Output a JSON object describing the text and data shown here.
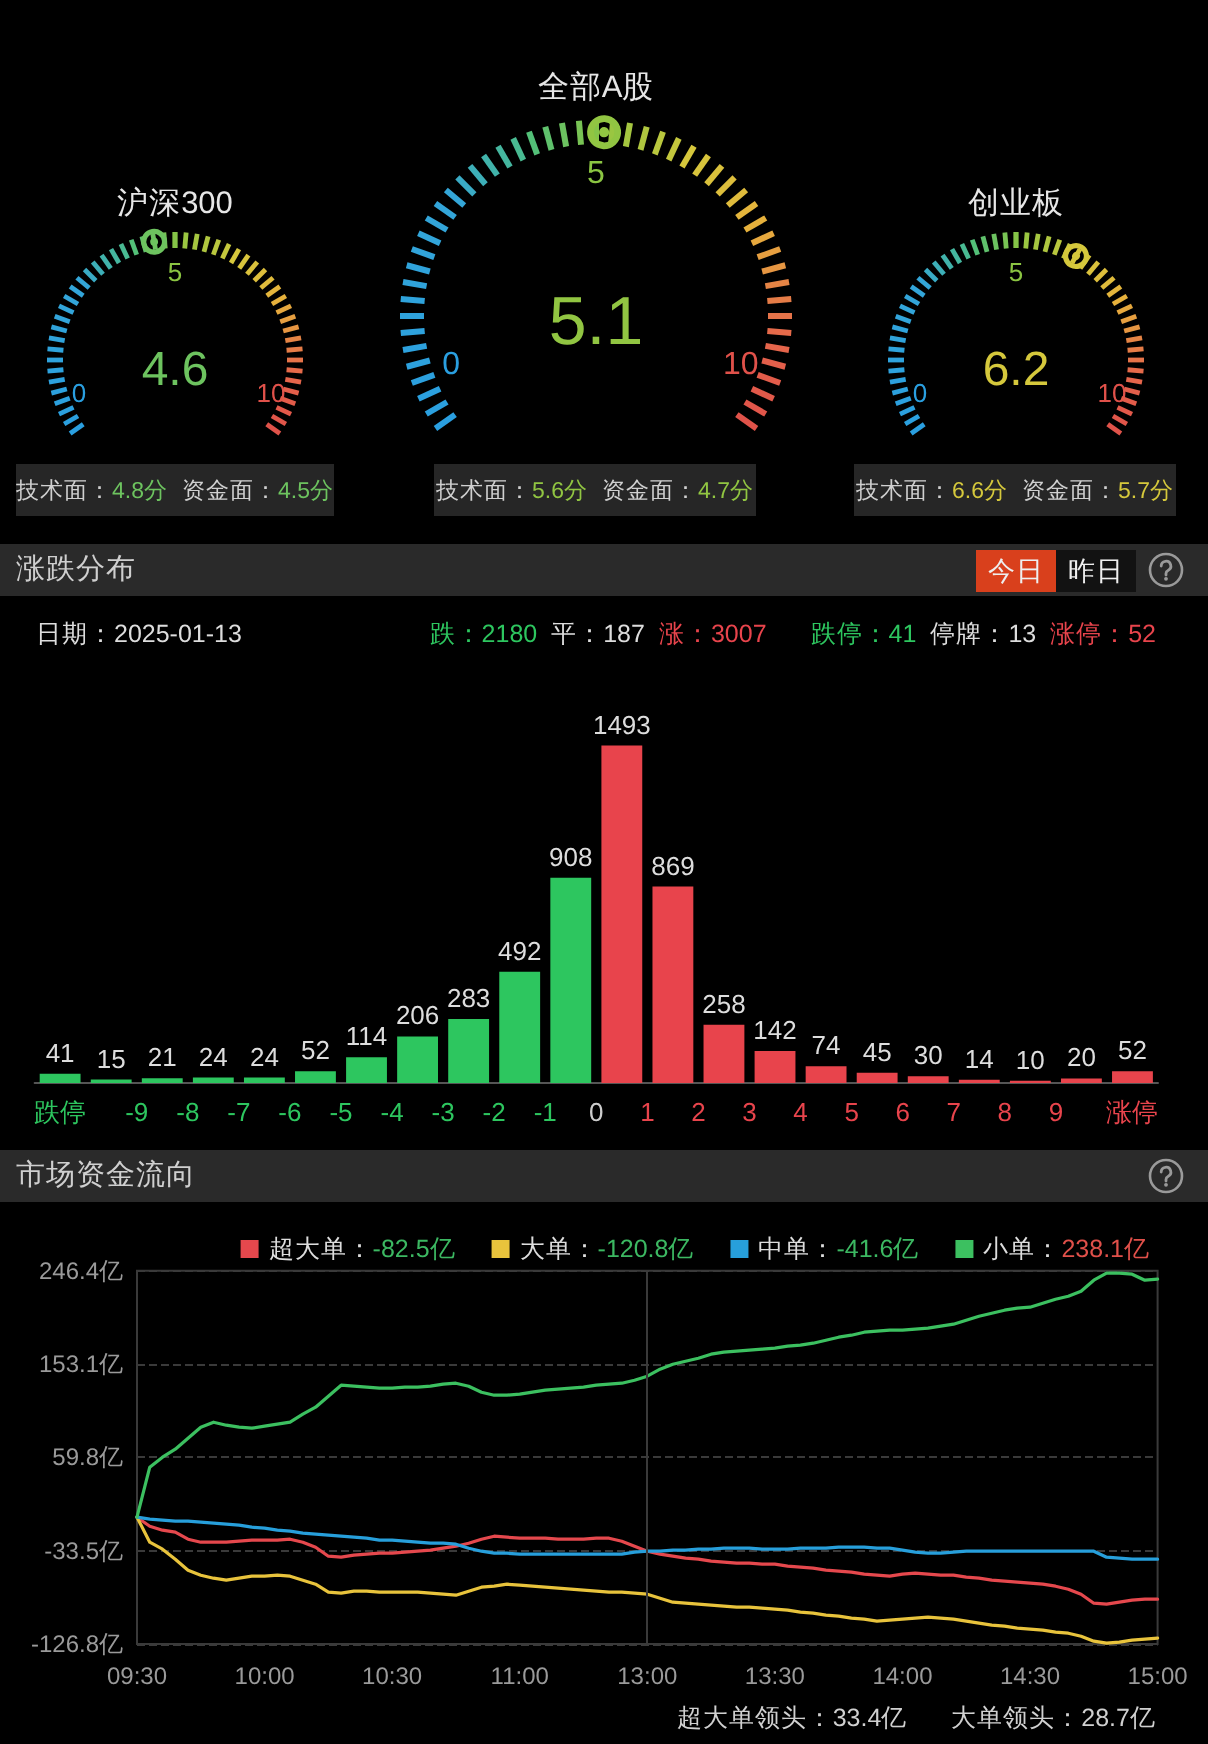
{
  "chart_data": [
    {
      "type": "other",
      "title": "沪深300",
      "values": [
        4.6
      ],
      "data_labels": true,
      "annotations": [
        "0",
        "5",
        "10",
        "技术面：4.8分",
        "资金面：4.5分"
      ]
    },
    {
      "type": "other",
      "title": "全部A股",
      "values": [
        5.1
      ],
      "data_labels": true,
      "annotations": [
        "0",
        "5",
        "10",
        "技术面：5.6分",
        "资金面：4.7分"
      ]
    },
    {
      "type": "other",
      "title": "创业板",
      "values": [
        6.2
      ],
      "data_labels": true,
      "annotations": [
        "0",
        "5",
        "10",
        "技术面：6.6分",
        "资金面：5.7分"
      ]
    },
    {
      "type": "bar",
      "title": "涨跌分布",
      "x": [
        -10.5,
        -9.5,
        -8.5,
        -7.5,
        -6.5,
        -5.5,
        -4.5,
        -3.5,
        -2.5,
        -1.5,
        -0.5,
        0.5,
        1.5,
        2.5,
        3.5,
        4.5,
        5.5,
        6.5,
        7.5,
        8.5,
        9.5,
        10.5
      ],
      "values": [
        41,
        15,
        21,
        24,
        24,
        52,
        114,
        206,
        283,
        492,
        908,
        1493,
        869,
        258,
        142,
        74,
        45,
        30,
        14,
        10,
        20,
        52
      ],
      "colors": [
        "#2dc65f",
        "#2dc65f",
        "#2dc65f",
        "#2dc65f",
        "#2dc65f",
        "#2dc65f",
        "#2dc65f",
        "#2dc65f",
        "#2dc65f",
        "#2dc65f",
        "#2dc65f",
        "#e8444c",
        "#e8444c",
        "#e8444c",
        "#e8444c",
        "#e8444c",
        "#e8444c",
        "#e8444c",
        "#e8444c",
        "#e8444c",
        "#e8444c",
        "#e8444c"
      ],
      "xlim": [
        -11,
        11
      ],
      "xticks": [
        {
          "value": -10.5,
          "label": "跌停"
        },
        -9,
        -8,
        -7,
        -6,
        -5,
        -4,
        -3,
        -2,
        -1,
        0,
        1,
        2,
        3,
        4,
        5,
        6,
        7,
        8,
        9,
        {
          "value": 10.5,
          "label": "涨停"
        }
      ],
      "tick_labels": "x",
      "data_labels": true,
      "annotations": [
        "日期：2025-01-13",
        "跌：2180",
        "平：187",
        "涨：3007",
        "跌停：41",
        "停牌：13",
        "涨停：52",
        "今日",
        "昨日"
      ]
    },
    {
      "type": "line",
      "title": "市场资金流向",
      "categories": [
        "09:30",
        null,
        null,
        null,
        null,
        null,
        null,
        null,
        null,
        null,
        "10:00",
        null,
        null,
        null,
        null,
        null,
        null,
        null,
        null,
        null,
        "10:30",
        null,
        null,
        null,
        null,
        null,
        null,
        null,
        null,
        null,
        "11:00",
        null,
        null,
        null,
        null,
        null,
        null,
        null,
        null,
        null,
        "13:00",
        null,
        null,
        null,
        null,
        null,
        null,
        null,
        null,
        null,
        "13:30",
        null,
        null,
        null,
        null,
        null,
        null,
        null,
        null,
        null,
        "14:00",
        null,
        null,
        null,
        null,
        null,
        null,
        null,
        null,
        null,
        "14:30",
        null,
        null,
        null,
        null,
        null,
        null,
        null,
        null,
        null,
        "15:00"
      ],
      "series": [
        {
          "name": "超大单：-82.5亿",
          "color": "#e5484d",
          "values": [
            0,
            -9,
            -13,
            -15,
            -22,
            -25,
            -25,
            -25,
            -24,
            -23,
            -23,
            -23,
            -22,
            -25,
            -30,
            -39,
            -40,
            -38,
            -37,
            -36,
            -36,
            -35,
            -34,
            -33,
            -31,
            -29,
            -26,
            -22,
            -19,
            -20,
            -21,
            -21,
            -21,
            -22,
            -22,
            -22,
            -21,
            -21,
            -24,
            -29,
            -34,
            -37,
            -39,
            -41,
            -42,
            -44,
            -45,
            -46,
            -46,
            -47,
            -47,
            -49,
            -50,
            -51,
            -53,
            -54,
            -55,
            -57,
            -58,
            -59,
            -57,
            -56,
            -57,
            -58,
            -58,
            -60,
            -61,
            -63,
            -64,
            -65,
            -66,
            -67,
            -69,
            -72,
            -77,
            -86,
            -87,
            -85,
            -83,
            -82,
            -82
          ]
        },
        {
          "name": "大单：-120.8亿",
          "color": "#e8c33c",
          "values": [
            0,
            -25,
            -32,
            -42,
            -53,
            -58,
            -61,
            -63,
            -61,
            -59,
            -59,
            -58,
            -59,
            -63,
            -67,
            -75,
            -76,
            -74,
            -74,
            -75,
            -75,
            -75,
            -75,
            -76,
            -77,
            -78,
            -74,
            -70,
            -69,
            -67,
            -68,
            -69,
            -70,
            -71,
            -72,
            -73,
            -74,
            -75,
            -75,
            -76,
            -77,
            -81,
            -85,
            -86,
            -87,
            -88,
            -89,
            -90,
            -90,
            -91,
            -92,
            -93,
            -95,
            -96,
            -98,
            -99,
            -101,
            -102,
            -104,
            -103,
            -102,
            -101,
            -100,
            -101,
            -102,
            -104,
            -106,
            -108,
            -109,
            -111,
            -112,
            -113,
            -115,
            -116,
            -119,
            -124,
            -126,
            -125,
            -123,
            -122,
            -121
          ]
        },
        {
          "name": "中单：-41.6亿",
          "color": "#279fdb",
          "values": [
            0,
            -2,
            -3,
            -4,
            -4,
            -5,
            -6,
            -7,
            -8,
            -10,
            -11,
            -13,
            -14,
            -16,
            -17,
            -18,
            -19,
            -20,
            -21,
            -23,
            -23,
            -24,
            -25,
            -26,
            -26,
            -27,
            -31,
            -34,
            -36,
            -36,
            -37,
            -37,
            -37,
            -37,
            -37,
            -37,
            -37,
            -37,
            -37,
            -35,
            -34,
            -34,
            -33,
            -33,
            -32,
            -32,
            -31,
            -31,
            -31,
            -32,
            -32,
            -32,
            -31,
            -31,
            -31,
            -30,
            -30,
            -30,
            -31,
            -31,
            -33,
            -35,
            -36,
            -36,
            -35,
            -34,
            -34,
            -34,
            -34,
            -34,
            -34,
            -34,
            -34,
            -34,
            -34,
            -34,
            -40,
            -41,
            -42,
            -42,
            -42
          ]
        },
        {
          "name": "小单：238.1亿",
          "color": "#3cc060",
          "values": [
            0,
            50,
            60,
            68,
            79,
            90,
            95,
            92,
            90,
            89,
            91,
            93,
            95,
            103,
            110,
            121,
            132,
            131,
            130,
            129,
            129,
            130,
            130,
            131,
            133,
            134,
            131,
            125,
            122,
            122,
            123,
            125,
            127,
            128,
            129,
            130,
            132,
            133,
            134,
            137,
            141,
            148,
            153,
            156,
            159,
            163,
            165,
            166,
            167,
            168,
            169,
            171,
            172,
            174,
            177,
            180,
            182,
            185,
            186,
            187,
            187,
            188,
            189,
            191,
            193,
            197,
            201,
            204,
            207,
            209,
            210,
            214,
            218,
            221,
            226,
            237,
            244,
            244,
            243,
            237,
            238
          ]
        }
      ],
      "ylim": [
        -126.8,
        246.4
      ],
      "yticks": [
        {
          "value": -126.8,
          "label": "-126.8亿"
        },
        {
          "value": -33.5,
          "label": "-33.5亿"
        },
        {
          "value": 59.8,
          "label": "59.8亿"
        },
        {
          "value": 153.1,
          "label": "153.1亿"
        },
        {
          "value": 246.4,
          "label": "246.4亿"
        }
      ],
      "grid": "y",
      "legend": "top right",
      "marker": "none",
      "ref_lines": [
        {
          "axis": "x",
          "value": "13:00",
          "color": "#3a3a3a"
        }
      ],
      "annotations": [
        "超大单领头：33.4亿",
        "大单领头：28.7亿"
      ]
    }
  ]
}
